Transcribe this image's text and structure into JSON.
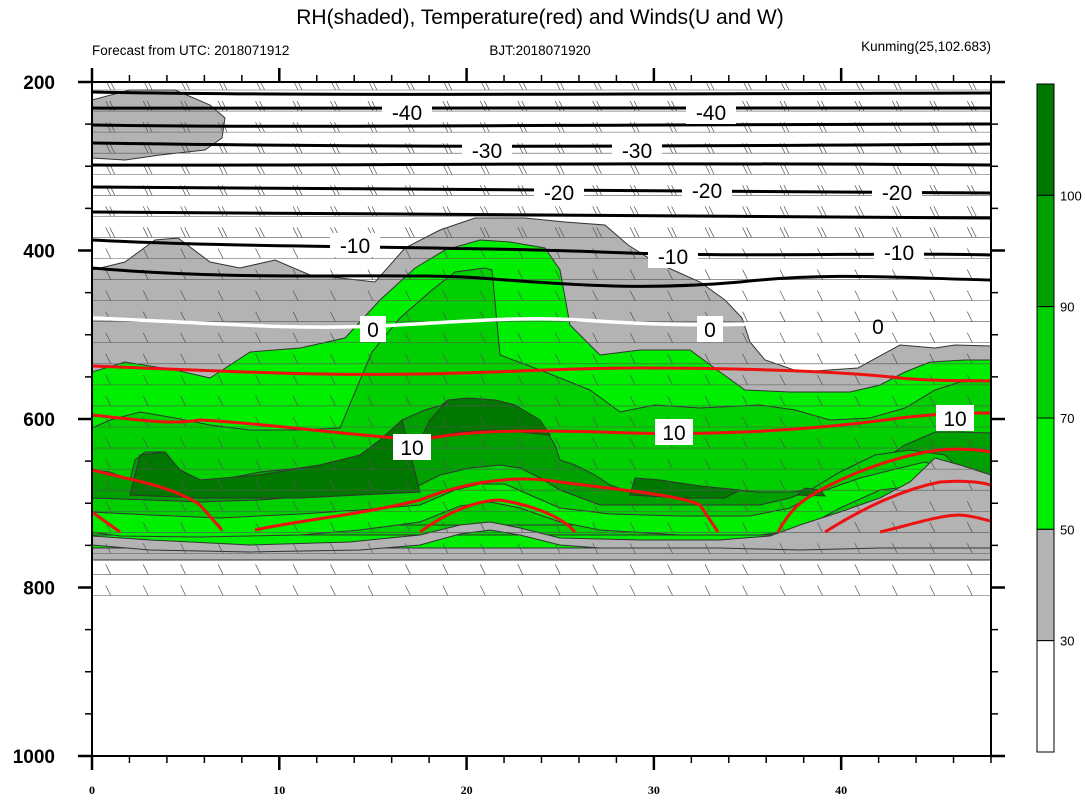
{
  "chart_data": {
    "type": "heatmap",
    "title": "RH(shaded), Temperature(red) and Winds(U and W)",
    "subtitle_left": "Forecast from UTC: 2018071912",
    "subtitle_center": "BJT:2018071920",
    "subtitle_right": "Kunming(25,102.683)",
    "x_axis": {
      "range": [
        0,
        48
      ],
      "ticks": [
        "0",
        "10",
        "20",
        "30",
        "40"
      ],
      "tick_values": [
        0,
        10,
        20,
        30,
        40
      ]
    },
    "y_axis": {
      "range": [
        200,
        1000
      ],
      "inverted": true,
      "ticks": [
        "200",
        "400",
        "600",
        "800",
        "1000"
      ],
      "tick_values": [
        200,
        400,
        600,
        800,
        1000
      ]
    },
    "colorbar": {
      "labels": [
        "30",
        "50",
        "70",
        "90",
        "100"
      ],
      "levels": [
        30,
        50,
        70,
        90,
        100
      ],
      "colors": [
        "#ffffff",
        "#b3b3b3",
        "#00ee00",
        "#00d000",
        "#00a000",
        "#007800"
      ]
    },
    "temperature_contour_labels": {
      "black": [
        "-40",
        "-40",
        "-30",
        "-30",
        "-20",
        "-20",
        "-20",
        "-10",
        "-10",
        "-10"
      ],
      "white": [
        "0",
        "0",
        "0"
      ],
      "red": [
        "10",
        "10",
        "10"
      ]
    },
    "colors": {
      "temperature": "#ee1111",
      "zero_isotherm": "#ffffff",
      "isotherm": "#000000",
      "barb": "#555555"
    }
  }
}
